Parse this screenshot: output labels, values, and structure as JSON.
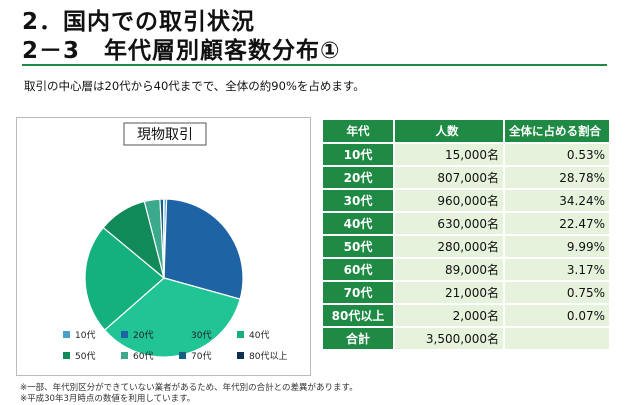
{
  "header": {
    "title_line1": "2．国内での取引状況",
    "title_line2": "2－3　年代層別顧客数分布①",
    "lead": "取引の中心層は20代から40代までで、全体の約90%を占めます。"
  },
  "chart_data": {
    "type": "pie",
    "title": "現物取引",
    "legend_placement": "bottom",
    "categories": [
      "10代",
      "20代",
      "30代",
      "40代",
      "50代",
      "60代",
      "70代",
      "80代以上"
    ],
    "values": [
      0.53,
      28.78,
      34.24,
      22.47,
      9.99,
      3.17,
      0.75,
      0.07
    ],
    "colors": [
      "#4aa0c8",
      "#1e63a4",
      "#21c494",
      "#14b07e",
      "#118a5a",
      "#3aa98c",
      "#155f83",
      "#0e2f4f"
    ]
  },
  "table": {
    "headers": [
      "年代",
      "人数",
      "全体に占める割合"
    ],
    "rows": [
      [
        "10代",
        "15,000名",
        "0.53%"
      ],
      [
        "20代",
        "807,000名",
        "28.78%"
      ],
      [
        "30代",
        "960,000名",
        "34.24%"
      ],
      [
        "40代",
        "630,000名",
        "22.47%"
      ],
      [
        "50代",
        "280,000名",
        "9.99%"
      ],
      [
        "60代",
        "89,000名",
        "3.17%"
      ],
      [
        "70代",
        "21,000名",
        "0.75%"
      ],
      [
        "80代以上",
        "2,000名",
        "0.07%"
      ]
    ],
    "total": [
      "合計",
      "3,500,000名",
      ""
    ]
  },
  "notes": [
    "※一部、年代別区分ができていない業者があるため、年代別の合計との差異があります。",
    "※平成30年3月時点の数値を利用しています。"
  ]
}
